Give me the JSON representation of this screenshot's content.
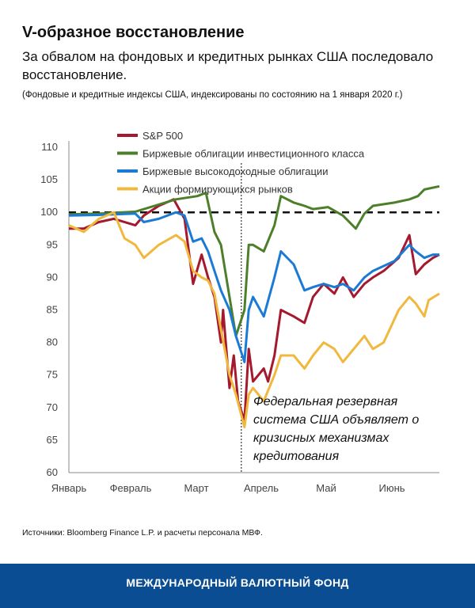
{
  "header": {
    "title": "V-образное восстановление",
    "subtitle": "За обвалом на фондовых и кредитных рынках США последовало восстановление.",
    "note": "(Фондовые и кредитные индексы США, индексированы по состоянию на 1 января 2020 г.)"
  },
  "chart_data": {
    "type": "line",
    "title": "",
    "xlabel": "",
    "ylabel": "",
    "ylim": [
      60,
      110
    ],
    "yticks": [
      "110",
      "105",
      "100",
      "95",
      "90",
      "85",
      "80",
      "75",
      "70",
      "65",
      "60"
    ],
    "xticks": [
      "Январь",
      "Февраль",
      "Март",
      "Апрель",
      "Май",
      "Июнь"
    ],
    "grid": false,
    "legend_position": "top-left",
    "reference_line": {
      "y": 100,
      "style": "dashed"
    },
    "event_line": {
      "date": "2020-03-23",
      "style": "dotted"
    },
    "annotation": [
      "Федеральная резервная",
      "система США объявляет о",
      "кризисных механизмах",
      "кредитования"
    ],
    "series": [
      {
        "name": "S&P 500",
        "color": "#a5192e",
        "x": [
          "2020-01-01",
          "2020-01-08",
          "2020-01-15",
          "2020-01-22",
          "2020-02-01",
          "2020-02-05",
          "2020-02-12",
          "2020-02-19",
          "2020-02-24",
          "2020-02-28",
          "2020-03-03",
          "2020-03-06",
          "2020-03-09",
          "2020-03-12",
          "2020-03-13",
          "2020-03-16",
          "2020-03-18",
          "2020-03-20",
          "2020-03-23",
          "2020-03-25",
          "2020-03-27",
          "2020-04-01",
          "2020-04-03",
          "2020-04-06",
          "2020-04-09",
          "2020-04-15",
          "2020-04-20",
          "2020-04-24",
          "2020-04-29",
          "2020-05-04",
          "2020-05-08",
          "2020-05-13",
          "2020-05-18",
          "2020-05-22",
          "2020-05-27",
          "2020-06-03",
          "2020-06-08",
          "2020-06-11",
          "2020-06-15",
          "2020-06-19",
          "2020-06-22"
        ],
        "values": [
          97.5,
          97.5,
          98.5,
          99,
          98,
          99.5,
          101,
          102,
          99,
          89,
          93.5,
          90,
          87,
          80,
          85,
          73,
          78,
          71,
          68,
          79,
          74,
          76,
          74,
          78,
          85,
          84,
          83,
          87,
          89,
          87.5,
          90,
          87,
          89,
          90,
          91,
          93,
          96.5,
          90.5,
          92,
          93,
          93.5
        ]
      },
      {
        "name": "Биржевые облигации инвестиционного класса",
        "color": "#4d7f2a",
        "x": [
          "2020-01-01",
          "2020-01-15",
          "2020-02-01",
          "2020-02-10",
          "2020-02-20",
          "2020-03-01",
          "2020-03-05",
          "2020-03-09",
          "2020-03-12",
          "2020-03-16",
          "2020-03-19",
          "2020-03-23",
          "2020-03-25",
          "2020-03-27",
          "2020-04-01",
          "2020-04-06",
          "2020-04-09",
          "2020-04-15",
          "2020-04-20",
          "2020-04-24",
          "2020-05-01",
          "2020-05-08",
          "2020-05-14",
          "2020-05-18",
          "2020-05-22",
          "2020-06-01",
          "2020-06-08",
          "2020-06-12",
          "2020-06-15",
          "2020-06-22"
        ],
        "values": [
          99.7,
          99.8,
          100.1,
          101,
          102,
          102.5,
          103,
          97,
          95,
          87,
          81,
          85,
          95,
          95,
          94,
          98,
          102.5,
          101.5,
          101,
          100.5,
          100.8,
          99.5,
          97.5,
          99.8,
          101,
          101.5,
          102,
          102.5,
          103.5,
          104
        ]
      },
      {
        "name": "Биржевые высокодоходные облигации",
        "color": "#1a7ad4",
        "x": [
          "2020-01-01",
          "2020-01-15",
          "2020-02-01",
          "2020-02-05",
          "2020-02-12",
          "2020-02-20",
          "2020-02-24",
          "2020-02-28",
          "2020-03-03",
          "2020-03-06",
          "2020-03-09",
          "2020-03-12",
          "2020-03-16",
          "2020-03-19",
          "2020-03-23",
          "2020-03-25",
          "2020-03-27",
          "2020-04-01",
          "2020-04-06",
          "2020-04-09",
          "2020-04-15",
          "2020-04-20",
          "2020-04-24",
          "2020-04-29",
          "2020-05-04",
          "2020-05-08",
          "2020-05-13",
          "2020-05-18",
          "2020-05-22",
          "2020-06-01",
          "2020-06-08",
          "2020-06-11",
          "2020-06-15",
          "2020-06-19",
          "2020-06-22"
        ],
        "values": [
          99.5,
          99.6,
          99.8,
          98.5,
          99,
          100,
          99.5,
          95.5,
          96,
          94,
          91,
          88,
          85,
          81,
          77,
          85,
          87,
          84,
          90,
          94,
          92,
          88,
          88.5,
          89,
          88.5,
          89,
          88,
          90,
          91,
          92.5,
          95,
          94,
          93,
          93.5,
          93.5
        ]
      },
      {
        "name": "Акции формирующихся рынков",
        "color": "#f0b83c",
        "x": [
          "2020-01-01",
          "2020-01-08",
          "2020-01-15",
          "2020-01-22",
          "2020-01-27",
          "2020-02-01",
          "2020-02-05",
          "2020-02-12",
          "2020-02-20",
          "2020-02-24",
          "2020-02-28",
          "2020-03-03",
          "2020-03-06",
          "2020-03-09",
          "2020-03-12",
          "2020-03-16",
          "2020-03-19",
          "2020-03-23",
          "2020-03-25",
          "2020-03-27",
          "2020-04-01",
          "2020-04-06",
          "2020-04-09",
          "2020-04-15",
          "2020-04-20",
          "2020-04-24",
          "2020-04-29",
          "2020-05-04",
          "2020-05-08",
          "2020-05-13",
          "2020-05-18",
          "2020-05-22",
          "2020-05-27",
          "2020-06-03",
          "2020-06-08",
          "2020-06-11",
          "2020-06-15",
          "2020-06-17",
          "2020-06-22"
        ],
        "values": [
          98,
          97,
          99,
          100,
          96,
          95,
          93,
          95,
          96.5,
          95.5,
          91,
          90,
          89.5,
          87.5,
          82,
          75,
          72,
          67,
          72,
          73,
          71,
          75,
          78,
          78,
          76,
          78,
          80,
          79,
          77,
          79,
          81,
          79,
          80,
          85,
          87,
          86,
          84,
          86.5,
          87.5
        ]
      }
    ]
  },
  "source": "Источники: Bloomberg Finance L.P. и расчеты персонала МВФ.",
  "footer": {
    "label": "МЕЖДУНАРОДНЫЙ ВАЛЮТНЫЙ ФОНД",
    "color": "#0b4d92"
  }
}
